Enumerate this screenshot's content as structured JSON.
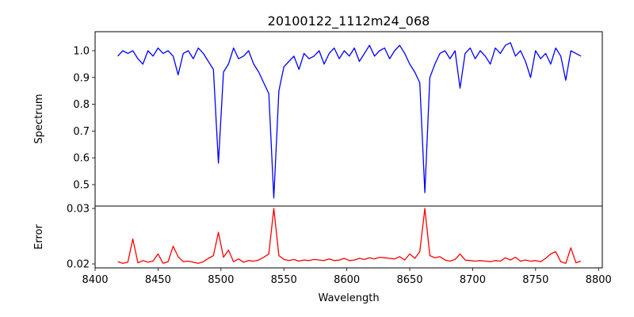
{
  "chart_data": {
    "type": "line",
    "title": "20100122_1112m24_068",
    "xlabel": "Wavelength",
    "xlim": [
      8400,
      8803
    ],
    "xticks": [
      8400,
      8450,
      8500,
      8550,
      8600,
      8650,
      8700,
      8750,
      8800
    ],
    "x": [
      8418,
      8422,
      8426,
      8430,
      8434,
      8438,
      8442,
      8446,
      8450,
      8454,
      8458,
      8462,
      8466,
      8470,
      8474,
      8478,
      8482,
      8486,
      8490,
      8494,
      8498,
      8502,
      8506,
      8510,
      8514,
      8518,
      8522,
      8526,
      8530,
      8534,
      8538,
      8542,
      8546,
      8550,
      8554,
      8558,
      8562,
      8566,
      8570,
      8574,
      8578,
      8582,
      8586,
      8590,
      8594,
      8598,
      8602,
      8606,
      8610,
      8614,
      8618,
      8622,
      8626,
      8630,
      8634,
      8638,
      8642,
      8646,
      8650,
      8654,
      8658,
      8662,
      8666,
      8670,
      8674,
      8678,
      8682,
      8686,
      8690,
      8694,
      8698,
      8702,
      8706,
      8710,
      8714,
      8718,
      8722,
      8726,
      8730,
      8734,
      8738,
      8742,
      8746,
      8750,
      8754,
      8758,
      8762,
      8766,
      8770,
      8774,
      8778,
      8782,
      8786
    ],
    "panels": [
      {
        "name": "spectrum",
        "ylabel": "Spectrum",
        "ylim": [
          0.42,
          1.071
        ],
        "yticks": [
          "0.5",
          "0.6",
          "0.7",
          "0.8",
          "0.9",
          "1.0"
        ],
        "color": "#0000ff",
        "values": [
          0.98,
          1.0,
          0.99,
          1.0,
          0.97,
          0.95,
          1.0,
          0.98,
          1.01,
          0.99,
          1.0,
          0.98,
          0.91,
          0.99,
          1.0,
          0.97,
          1.01,
          0.99,
          0.96,
          0.93,
          0.58,
          0.92,
          0.95,
          1.01,
          0.97,
          0.98,
          1.0,
          0.95,
          0.92,
          0.88,
          0.84,
          0.45,
          0.85,
          0.94,
          0.96,
          0.98,
          0.93,
          0.99,
          0.97,
          0.98,
          1.0,
          0.95,
          0.99,
          1.01,
          0.97,
          1.0,
          0.98,
          1.01,
          0.96,
          0.99,
          1.02,
          0.98,
          1.0,
          1.01,
          0.97,
          1.0,
          1.02,
          0.99,
          0.95,
          0.92,
          0.88,
          0.47,
          0.9,
          0.95,
          0.99,
          1.0,
          0.97,
          1.0,
          0.86,
          0.99,
          1.01,
          0.97,
          1.0,
          0.98,
          0.95,
          1.01,
          0.99,
          1.02,
          1.03,
          0.98,
          1.0,
          0.96,
          0.9,
          1.0,
          0.97,
          0.99,
          0.95,
          1.01,
          0.98,
          0.89,
          1.0,
          0.99,
          0.98
        ]
      },
      {
        "name": "error",
        "ylabel": "Error",
        "ylim": [
          0.01929,
          0.03043
        ],
        "yticks": [
          "0.02",
          "0.03"
        ],
        "color": "#ff0000",
        "values": [
          0.0204,
          0.0201,
          0.0203,
          0.0245,
          0.0202,
          0.0206,
          0.0203,
          0.0205,
          0.0218,
          0.0201,
          0.0204,
          0.0232,
          0.0213,
          0.0204,
          0.0205,
          0.0203,
          0.0201,
          0.0204,
          0.021,
          0.0215,
          0.0257,
          0.0212,
          0.0225,
          0.0204,
          0.0209,
          0.0203,
          0.0206,
          0.0205,
          0.0207,
          0.0212,
          0.0218,
          0.03,
          0.0215,
          0.0208,
          0.0206,
          0.0208,
          0.0205,
          0.0207,
          0.0206,
          0.0208,
          0.0207,
          0.0206,
          0.0209,
          0.0206,
          0.0207,
          0.021,
          0.0206,
          0.0207,
          0.021,
          0.0208,
          0.0211,
          0.0209,
          0.0212,
          0.0211,
          0.021,
          0.0209,
          0.0213,
          0.0207,
          0.0218,
          0.021,
          0.0222,
          0.03,
          0.0215,
          0.0211,
          0.0213,
          0.0207,
          0.0205,
          0.0208,
          0.0218,
          0.0207,
          0.0206,
          0.0205,
          0.0206,
          0.0205,
          0.0204,
          0.0206,
          0.0205,
          0.0211,
          0.0207,
          0.0212,
          0.0205,
          0.0207,
          0.0205,
          0.0206,
          0.0204,
          0.021,
          0.0218,
          0.0222,
          0.0204,
          0.0201,
          0.0229,
          0.0202,
          0.0205
        ]
      }
    ]
  }
}
